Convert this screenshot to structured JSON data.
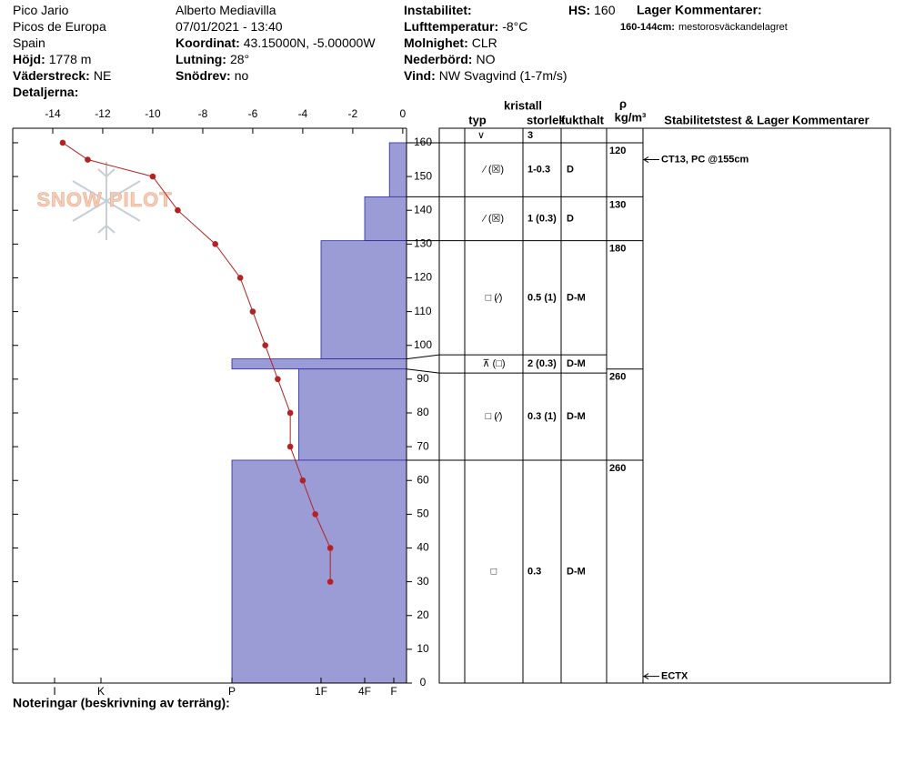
{
  "header": {
    "columns": [
      [
        {
          "value": "Pico Jario"
        },
        {
          "value": "Picos de Europa"
        },
        {
          "value": "Spain"
        },
        {
          "label": "Höjd:",
          "value": "1778 m"
        },
        {
          "label": "Väderstreck:",
          "value": "NE"
        },
        {
          "label": "Detaljerna:"
        }
      ],
      [
        {
          "value": "Alberto Mediavilla"
        },
        {
          "value": "07/01/2021 - 13:40"
        },
        {
          "label": "Koordinat:",
          "value": "43.15000N, -5.00000W"
        },
        {
          "label": "Lutning:",
          "value": "28°"
        },
        {
          "label": "Snödrev:",
          "value": "no"
        }
      ],
      [
        {
          "label": "Instabilitet:"
        },
        {
          "label": "Lufttemperatur:",
          "value": "-8°C"
        },
        {
          "label": "Molnighet:",
          "value": "CLR"
        },
        {
          "label": "Nederbörd:",
          "value": "NO"
        },
        {
          "label": "Vind:",
          "value": "NW Svagvind (1-7m/s)"
        }
      ]
    ],
    "hs": {
      "label": "HS:",
      "value": "160"
    },
    "layer_comments": {
      "title": "Lager Kommentarer:",
      "items": [
        {
          "label": "160-144cm:",
          "value": "mestorosväckandelagret"
        }
      ]
    }
  },
  "watermark": "SNOW PILOT",
  "chart_data": {
    "type": "snow-profile",
    "ylim": [
      0,
      164.3
    ],
    "yticks": [
      0,
      10,
      20,
      30,
      40,
      50,
      60,
      70,
      80,
      90,
      100,
      110,
      120,
      130,
      140,
      150,
      160
    ],
    "xlim": [
      -15.6,
      0.15
    ],
    "xticks": [
      -14,
      -12,
      -10,
      -8,
      -6,
      -4,
      -2,
      0
    ],
    "temperature": {
      "color": "#b22222",
      "heights": [
        160,
        155,
        150,
        140,
        130,
        120,
        110,
        100,
        90,
        80,
        70,
        60,
        50,
        40,
        30
      ],
      "values": [
        -13.6,
        -12.6,
        -10,
        -9,
        -7.5,
        -6.5,
        -6,
        -5.5,
        -5,
        -4.5,
        -4.5,
        -4,
        -3.5,
        -2.9,
        -2.9
      ]
    },
    "hardness": {
      "color": "#9b9bd6",
      "edge": "#2b2b9a",
      "ticks": [
        {
          "value": 1,
          "label": "F"
        },
        {
          "value": 2,
          "label": "4F"
        },
        {
          "value": 3,
          "label": "1F"
        },
        {
          "value": 4,
          "label": "P"
        },
        {
          "value": 5,
          "label": "K"
        },
        {
          "value": 6,
          "label": "I"
        }
      ],
      "layers": [
        {
          "top": 160,
          "bottom": 144,
          "value": 1.15
        },
        {
          "top": 144,
          "bottom": 131,
          "value": 2
        },
        {
          "top": 131,
          "bottom": 96,
          "value": 3
        },
        {
          "top": 96,
          "bottom": 93,
          "value": 4
        },
        {
          "top": 93,
          "bottom": 66,
          "value": 3.25
        },
        {
          "top": 66,
          "bottom": 0,
          "value": 4
        }
      ]
    }
  },
  "table": {
    "headers": {
      "crystal": "kristall",
      "type": "typ",
      "size": "storlek",
      "moisture": "fukthalt",
      "density_symbol": "ρ",
      "density_unit": "kg/m³",
      "comments": "Stabilitetstest & Lager Kommentarer"
    },
    "surface": {
      "type": "∨",
      "size": "3"
    },
    "layers": [
      {
        "top": 160,
        "bottom": 144,
        "type": "∕ (☒)",
        "size": "1-0.3",
        "moisture": "D"
      },
      {
        "top": 144,
        "bottom": 131,
        "type": "∕ (☒)",
        "size": "1 (0.3)",
        "moisture": "D"
      },
      {
        "top": 131,
        "bottom": 96,
        "type": "□ (∕)",
        "size": "0.5 (1)",
        "moisture": "D-M"
      },
      {
        "top": 96,
        "bottom": 93,
        "type": "⊼ (□)",
        "size": "2 (0.3)",
        "moisture": "D-M"
      },
      {
        "top": 93,
        "bottom": 66,
        "type": "□ (∕)",
        "size": "0.3 (1)",
        "moisture": "D-M"
      },
      {
        "top": 66,
        "bottom": 0,
        "type": "□",
        "size": "0.3",
        "moisture": "D-M"
      }
    ],
    "densities": [
      {
        "top": 160,
        "value": 120
      },
      {
        "top": 144,
        "value": 130
      },
      {
        "top": 131,
        "value": 180
      },
      {
        "top": 93,
        "value": 260
      },
      {
        "top": 66,
        "value": 260
      }
    ],
    "comments": [
      {
        "height": 155,
        "text": "CT13, PC @155cm"
      },
      {
        "height": 2,
        "text": "ECTX"
      }
    ]
  },
  "notes": "Noteringar (beskrivning av terräng):"
}
